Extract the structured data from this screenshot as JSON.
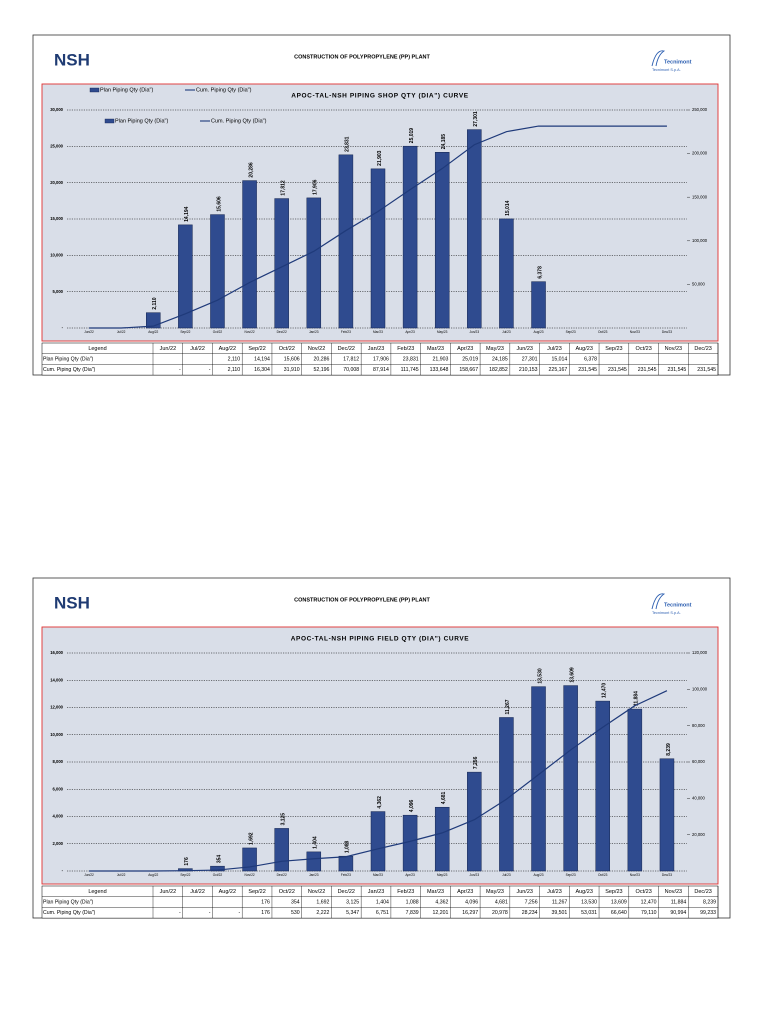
{
  "pages": [
    {
      "logo": "NSH",
      "title": "CONSTRUCTION OF POLYPROPYLENE (PP) PLANT",
      "brand": "Tecnimont",
      "brand_sub": "Tecnimont S.p.A."
    },
    {
      "logo": "NSH",
      "title": "CONSTRUCTION OF POLYPROPYLENE (PP) PLANT",
      "brand": "Tecnimont",
      "brand_sub": "Tecnimont S.p.A."
    }
  ],
  "chart_data": [
    {
      "type": "bar_line",
      "title": "APOC-TAL-NSH PIPING SHOP QTY (DIA\") CURVE",
      "table_corner": "Legend",
      "categories": [
        "Jun/22",
        "Jul/22",
        "Aug/22",
        "Sep/22",
        "Oct/22",
        "Nov/22",
        "Dec/22",
        "Jan/23",
        "Feb/23",
        "Mar/23",
        "Apr/23",
        "May/23",
        "Jun/23",
        "Jul/23",
        "Aug/23",
        "Sep/23",
        "Oct/23",
        "Nov/23",
        "Dec/23"
      ],
      "series": [
        {
          "name": "Plan Piping Qty (Dia\")",
          "color": "#2f4b8f",
          "type": "bar",
          "values": [
            null,
            null,
            2110,
            14194,
            15606,
            20286,
            17812,
            17906,
            23831,
            21903,
            25019,
            24185,
            27301,
            15014,
            6378,
            null,
            null,
            null,
            null
          ],
          "value_labels": [
            null,
            null,
            "2,110",
            "14,194",
            "15,606",
            "20,286",
            "17,812",
            "17,906",
            "23,831",
            "21,903",
            "25,019",
            "24,185",
            "27,301",
            "15,014",
            "6,378",
            null,
            null,
            null,
            null
          ]
        },
        {
          "name": "Cum. Piping Qty (Dia\")",
          "color": "#1f3a7a",
          "type": "line",
          "axis": "y2",
          "values": [
            0,
            0,
            2110,
            16304,
            31910,
            52196,
            70008,
            87914,
            111745,
            133648,
            158667,
            182852,
            210153,
            225167,
            231545,
            231545,
            231545,
            231545,
            231545
          ],
          "value_labels": [
            "-",
            "-",
            "2,110",
            "16,304",
            "31,910",
            "52,196",
            "70,008",
            "87,914",
            "111,745",
            "133,648",
            "158,667",
            "182,852",
            "210,153",
            "225,167",
            "231,545",
            "231,545",
            "231,545",
            "231,545",
            "231,545"
          ]
        }
      ],
      "ylim": [
        0,
        30000
      ],
      "yticks": [
        {
          "value": 0,
          "label": "-"
        },
        {
          "value": 5000,
          "label": "5,000"
        },
        {
          "value": 10000,
          "label": "10,000"
        },
        {
          "value": 15000,
          "label": "15,000"
        },
        {
          "value": 20000,
          "label": "20,000"
        },
        {
          "value": 25000,
          "label": "25,000"
        },
        {
          "value": 30000,
          "label": "30,000"
        }
      ],
      "y2lim": [
        0,
        250000
      ],
      "y2ticks": [
        {
          "value": 50000,
          "label": "50,000"
        },
        {
          "value": 100000,
          "label": "100,000"
        },
        {
          "value": 150000,
          "label": "150,000"
        },
        {
          "value": 200000,
          "label": "200,000"
        },
        {
          "value": 250000,
          "label": "250,000"
        }
      ],
      "grid": true,
      "legend": "upper left"
    },
    {
      "type": "bar_line",
      "title": "APOC-TAL-NSH PIPING FIELD QTY (DIA\") CURVE",
      "table_corner": "Legend",
      "categories": [
        "Jun/22",
        "Jul/22",
        "Aug/22",
        "Sep/22",
        "Oct/22",
        "Nov/22",
        "Dec/22",
        "Jan/23",
        "Feb/23",
        "Mar/23",
        "Apr/23",
        "May/23",
        "Jun/23",
        "Jul/23",
        "Aug/23",
        "Sep/23",
        "Oct/23",
        "Nov/23",
        "Dec/23"
      ],
      "series": [
        {
          "name": "Plan Piping Qty (Dia\")",
          "color": "#2f4b8f",
          "type": "bar",
          "values": [
            null,
            null,
            null,
            176,
            354,
            1692,
            3125,
            1404,
            1088,
            4362,
            4096,
            4681,
            7256,
            11267,
            13530,
            13609,
            12470,
            11884,
            8239
          ],
          "value_labels": [
            null,
            null,
            null,
            "176",
            "354",
            "1,692",
            "3,125",
            "1,404",
            "1,088",
            "4,362",
            "4,096",
            "4,681",
            "7,256",
            "11,267",
            "13,530",
            "13,609",
            "12,470",
            "11,884",
            "8,239"
          ]
        },
        {
          "name": "Cum. Piping Qty (Dia\")",
          "color": "#1f3a7a",
          "type": "line",
          "axis": "y2",
          "values": [
            0,
            0,
            0,
            176,
            530,
            2222,
            5347,
            6751,
            7839,
            12201,
            16297,
            20978,
            28234,
            39501,
            53031,
            66640,
            79110,
            90994,
            99233
          ],
          "value_labels": [
            "-",
            "-",
            "-",
            "176",
            "530",
            "2,222",
            "5,347",
            "6,751",
            "7,839",
            "12,201",
            "16,297",
            "20,978",
            "28,234",
            "39,501",
            "53,031",
            "66,640",
            "79,110",
            "90,994",
            "99,233"
          ]
        }
      ],
      "ylim": [
        0,
        16000
      ],
      "yticks": [
        {
          "value": 0,
          "label": "-"
        },
        {
          "value": 2000,
          "label": "2,000"
        },
        {
          "value": 4000,
          "label": "4,000"
        },
        {
          "value": 6000,
          "label": "6,000"
        },
        {
          "value": 8000,
          "label": "8,000"
        },
        {
          "value": 10000,
          "label": "10,000"
        },
        {
          "value": 12000,
          "label": "12,000"
        },
        {
          "value": 14000,
          "label": "14,000"
        },
        {
          "value": 16000,
          "label": "16,000"
        }
      ],
      "y2lim": [
        0,
        120000
      ],
      "y2ticks": [
        {
          "value": 20000,
          "label": "20,000"
        },
        {
          "value": 40000,
          "label": "40,000"
        },
        {
          "value": 60000,
          "label": "60,000"
        },
        {
          "value": 80000,
          "label": "80,000"
        },
        {
          "value": 100000,
          "label": "100,000"
        },
        {
          "value": 120000,
          "label": "120,000"
        }
      ],
      "grid": true,
      "legend": "upper left"
    }
  ]
}
